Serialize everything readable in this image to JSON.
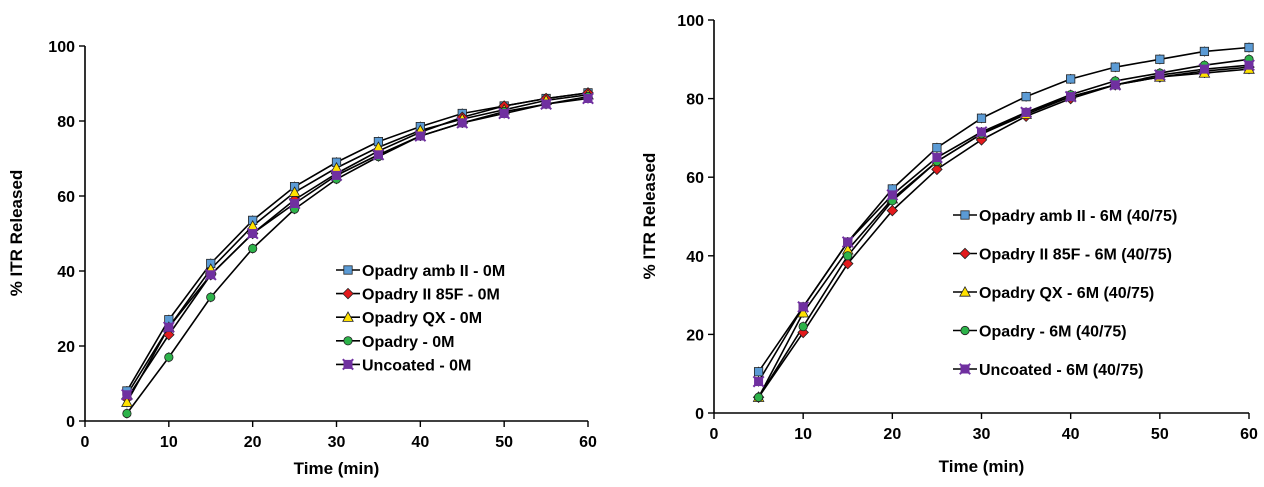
{
  "chart_data": [
    {
      "type": "line",
      "title": "",
      "xlabel": "Time (min)",
      "ylabel": "% ITR Released",
      "xlim": [
        0,
        60
      ],
      "ylim": [
        0,
        100
      ],
      "xticks": [
        0,
        10,
        20,
        30,
        40,
        50,
        60
      ],
      "yticks": [
        0,
        20,
        40,
        60,
        80,
        100
      ],
      "grid": false,
      "legend_position": "center-right",
      "x": [
        5,
        10,
        15,
        20,
        25,
        30,
        35,
        40,
        45,
        50,
        55,
        60
      ],
      "series": [
        {
          "name": "Opadry amb II - 0M",
          "color": "#5b9bd5",
          "marker": "square",
          "values": [
            8,
            27,
            42,
            53.5,
            62.5,
            69,
            74.5,
            78.5,
            82,
            84,
            86,
            87.5
          ]
        },
        {
          "name": "Opadry II 85F - 0M",
          "color": "#e31a1c",
          "marker": "diamond",
          "values": [
            6,
            23,
            39,
            50,
            59,
            66,
            72,
            77,
            81,
            84,
            86,
            87.5
          ]
        },
        {
          "name": "Opadry QX - 0M",
          "color": "#ffe100",
          "marker": "triangle",
          "values": [
            5,
            25,
            40.5,
            52,
            61,
            67.5,
            73,
            77.5,
            80.5,
            83,
            85.5,
            87
          ]
        },
        {
          "name": "Opadry - 0M",
          "color": "#2db34a",
          "marker": "circle",
          "values": [
            2,
            17,
            33,
            46,
            56.5,
            64.5,
            70.5,
            76,
            79.5,
            82.5,
            84.5,
            86.5
          ]
        },
        {
          "name": "Uncoated - 0M",
          "color": "#7030a0",
          "marker": "star",
          "values": [
            7,
            25,
            39,
            50,
            58,
            65.5,
            71,
            76,
            79.5,
            82,
            84.5,
            86
          ]
        }
      ]
    },
    {
      "type": "line",
      "title": "",
      "xlabel": "Time (min)",
      "ylabel": "% ITR Released",
      "xlim": [
        0,
        60
      ],
      "ylim": [
        0,
        100
      ],
      "xticks": [
        0,
        10,
        20,
        30,
        40,
        50,
        60
      ],
      "yticks": [
        0,
        20,
        40,
        60,
        80,
        100
      ],
      "grid": false,
      "legend_position": "center-right",
      "x": [
        5,
        10,
        15,
        20,
        25,
        30,
        35,
        40,
        45,
        50,
        55,
        60
      ],
      "series": [
        {
          "name": "Opadry amb II - 6M (40/75)",
          "color": "#5b9bd5",
          "marker": "square",
          "values": [
            10.5,
            27,
            43.5,
            57,
            67.5,
            75,
            80.5,
            85,
            88,
            90,
            92,
            93
          ]
        },
        {
          "name": "Opadry II 85F - 6M (40/75)",
          "color": "#e31a1c",
          "marker": "diamond",
          "values": [
            4,
            20.5,
            38,
            51.5,
            62,
            69.5,
            75.5,
            80,
            83.5,
            85.5,
            87,
            88
          ]
        },
        {
          "name": "Opadry QX - 6M (40/75)",
          "color": "#ffe100",
          "marker": "triangle",
          "values": [
            4,
            25.5,
            41.5,
            54.5,
            64,
            71,
            76,
            80.5,
            83.5,
            85.5,
            86.5,
            87.5
          ]
        },
        {
          "name": "Opadry - 6M (40/75)",
          "color": "#2db34a",
          "marker": "circle",
          "values": [
            4,
            22,
            40,
            54,
            64,
            71,
            76.5,
            81,
            84.5,
            86.5,
            88.5,
            90
          ]
        },
        {
          "name": "Uncoated - 6M (40/75)",
          "color": "#7030a0",
          "marker": "star",
          "values": [
            8,
            27,
            43.5,
            55.5,
            65,
            71.5,
            76.5,
            80.5,
            83.5,
            86,
            87.5,
            88.5
          ]
        }
      ]
    }
  ]
}
